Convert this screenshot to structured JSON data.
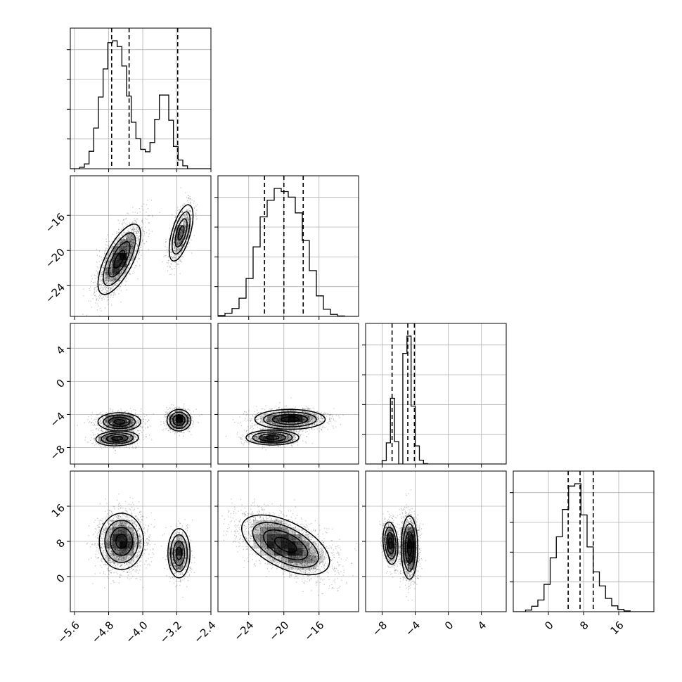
{
  "chart_data": {
    "type": "corner",
    "title": "",
    "grid": true,
    "parameters": [
      {
        "range": [
          -5.7,
          -2.4
        ],
        "ticks": [
          -5.6,
          -4.8,
          -4.0,
          -3.2,
          -2.4
        ],
        "tick_labels": [
          "−5.6",
          "−4.8",
          "−4.0",
          "−3.2",
          "−2.4"
        ],
        "quantiles": [
          -4.73,
          -4.32,
          -3.18
        ],
        "histogram": {
          "bin_edges": [
            -5.7,
            -5.59,
            -5.48,
            -5.37,
            -5.26,
            -5.15,
            -5.04,
            -4.93,
            -4.82,
            -4.71,
            -4.6,
            -4.49,
            -4.38,
            -4.27,
            -4.16,
            -4.05,
            -3.94,
            -3.83,
            -3.72,
            -3.61,
            -3.5,
            -3.39,
            -3.28,
            -3.17,
            -3.06,
            -2.95,
            -2.84,
            -2.73,
            -2.62,
            -2.51,
            -2.4
          ],
          "counts": [
            0,
            0,
            15,
            50,
            180,
            420,
            740,
            1030,
            1300,
            1320,
            1260,
            1060,
            750,
            480,
            310,
            200,
            175,
            270,
            510,
            760,
            760,
            500,
            230,
            90,
            30,
            0,
            0,
            0,
            0,
            0
          ]
        }
      },
      {
        "range": [
          -27.5,
          -11.5
        ],
        "ticks": [
          -24,
          -20,
          -16
        ],
        "tick_labels": [
          "−24",
          "−20",
          "−16"
        ],
        "quantiles": [
          -22.2,
          -20.0,
          -17.8
        ],
        "histogram": {
          "bin_edges": [
            -27.5,
            -26.7,
            -25.9,
            -25.1,
            -24.3,
            -23.5,
            -22.7,
            -21.9,
            -21.1,
            -20.3,
            -19.5,
            -18.7,
            -17.9,
            -17.1,
            -16.3,
            -15.5,
            -14.7,
            -13.9,
            -13.1,
            -12.3,
            -11.5
          ],
          "counts": [
            10,
            40,
            100,
            230,
            480,
            880,
            1260,
            1470,
            1620,
            1580,
            1510,
            1310,
            960,
            580,
            260,
            90,
            25,
            5,
            0,
            0
          ]
        }
      },
      {
        "range": [
          -10.0,
          7.0
        ],
        "ticks": [
          -8,
          -4,
          0,
          4
        ],
        "tick_labels": [
          "−8",
          "−4",
          "0",
          "4"
        ],
        "quantiles": [
          -6.8,
          -4.9,
          -4.1
        ],
        "histogram": {
          "bin_edges": [
            -10.0,
            -9.5,
            -9.0,
            -8.5,
            -8.0,
            -7.5,
            -7.0,
            -6.5,
            -6.0,
            -5.5,
            -5.0,
            -4.5,
            -4.0,
            -3.5,
            -3.0,
            -2.5,
            -2.0,
            -1.5,
            -1.0,
            -0.5,
            0.0,
            0.5,
            1.0,
            1.5,
            2.0,
            2.5,
            3.0,
            3.5,
            4.0,
            4.5,
            5.0,
            5.5,
            6.0,
            6.5,
            7.0
          ],
          "counts": [
            0,
            0,
            0,
            0,
            80,
            490,
            1520,
            520,
            0,
            2560,
            2960,
            1340,
            420,
            90,
            10,
            0,
            0,
            0,
            0,
            0,
            0,
            0,
            0,
            0,
            0,
            0,
            0,
            0,
            0,
            0,
            0,
            0,
            0,
            0
          ]
        }
      },
      {
        "range": [
          -8.0,
          24.0
        ],
        "ticks": [
          0,
          8,
          16
        ],
        "tick_labels": [
          "0",
          "8",
          "16"
        ],
        "quantiles": [
          4.5,
          7.2,
          10.2
        ],
        "histogram": {
          "bin_edges": [
            -8.0,
            -6.6,
            -5.2,
            -3.8,
            -2.4,
            -1.0,
            0.4,
            1.8,
            3.2,
            4.6,
            6.0,
            7.4,
            8.8,
            10.2,
            11.6,
            13.0,
            14.4,
            15.8,
            17.2,
            18.6,
            20.0,
            21.4,
            22.8,
            24.0
          ],
          "counts": [
            0,
            0,
            20,
            70,
            150,
            350,
            690,
            960,
            1310,
            1610,
            1640,
            1240,
            830,
            510,
            330,
            170,
            75,
            30,
            10,
            0,
            0,
            0,
            0
          ]
        }
      }
    ],
    "pairs": [
      {
        "x_param": 0,
        "y_param": 1,
        "clusters": [
          {
            "center": [
              -4.55,
              -21.0
            ],
            "sd": [
              0.25,
              2.0
            ],
            "rho": 0.7,
            "n": 2400
          },
          {
            "center": [
              -3.1,
              -18.0
            ],
            "sd": [
              0.14,
              1.6
            ],
            "rho": 0.6,
            "n": 900
          }
        ]
      },
      {
        "x_param": 0,
        "y_param": 2,
        "clusters": [
          {
            "center": [
              -4.55,
              -4.9
            ],
            "sd": [
              0.25,
              0.55
            ],
            "rho": 0.0,
            "n": 1300
          },
          {
            "center": [
              -4.6,
              -6.9
            ],
            "sd": [
              0.25,
              0.45
            ],
            "rho": 0.1,
            "n": 1000
          },
          {
            "center": [
              -3.15,
              -4.7
            ],
            "sd": [
              0.14,
              0.65
            ],
            "rho": 0.0,
            "n": 900
          }
        ]
      },
      {
        "x_param": 1,
        "y_param": 2,
        "clusters": [
          {
            "center": [
              -19.3,
              -4.6
            ],
            "sd": [
              2.0,
              0.6
            ],
            "rho": 0.0,
            "n": 1700
          },
          {
            "center": [
              -21.3,
              -6.8
            ],
            "sd": [
              1.5,
              0.45
            ],
            "rho": 0.0,
            "n": 1000
          }
        ]
      },
      {
        "x_param": 0,
        "y_param": 3,
        "clusters": [
          {
            "center": [
              -4.5,
              8.0
            ],
            "sd": [
              0.26,
              3.2
            ],
            "rho": 0.0,
            "n": 2300
          },
          {
            "center": [
              -3.15,
              5.3
            ],
            "sd": [
              0.13,
              2.8
            ],
            "rho": 0.0,
            "n": 900
          }
        ]
      },
      {
        "x_param": 1,
        "y_param": 3,
        "clusters": [
          {
            "center": [
              -19.8,
              7.2
            ],
            "sd": [
              2.5,
              3.4
            ],
            "rho": -0.55,
            "n": 3200
          }
        ]
      },
      {
        "x_param": 2,
        "y_param": 3,
        "clusters": [
          {
            "center": [
              -7.0,
              7.6
            ],
            "sd": [
              0.45,
              2.4
            ],
            "rho": -0.2,
            "n": 1100
          },
          {
            "center": [
              -4.7,
              6.6
            ],
            "sd": [
              0.5,
              3.6
            ],
            "rho": 0.0,
            "n": 2100
          }
        ]
      }
    ]
  }
}
